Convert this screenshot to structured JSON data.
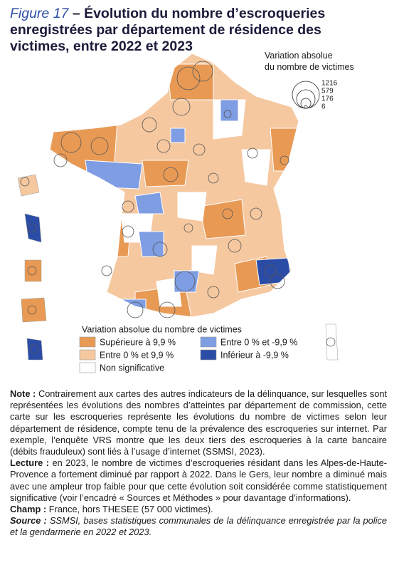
{
  "figure": {
    "label": "Figure 17",
    "title": "– Évolution du nombre d’escroqueries enregistrées par département de résidence des victimes, entre 2022 et 2023"
  },
  "bubble_legend": {
    "title": "Variation absolue du nombre de victimes",
    "values": [
      1216,
      579,
      176,
      6
    ]
  },
  "legend": {
    "title": "Variation absolue du nombre de victimes",
    "items": [
      {
        "label": "Supérieure à 9,9 %",
        "color": "#e89a55"
      },
      {
        "label": "Entre 0 % et 9,9 %",
        "color": "#f5c8a0"
      },
      {
        "label": "Non significative",
        "color": "#ffffff"
      },
      {
        "label": "Entre 0 % et -9,9 %",
        "color": "#7f9de3"
      },
      {
        "label": "Inférieur à -9,9 %",
        "color": "#2b4ca6"
      }
    ]
  },
  "notes": [
    {
      "label": "Note :",
      "text": "Contrairement aux cartes des autres indicateurs de la délinquance, sur lesquelles sont représentées les évolutions des nombres d’atteintes par département de commission, cette carte sur les escroqueries représente les évolutions du nombre de victimes selon leur département de résidence, compte tenu de la prévalence des escroqueries sur internet. Par exemple, l’enquête VRS montre que les deux tiers des escroqueries à la carte bancaire (débits frauduleux) sont liés à l’usage d’internet (SSMSI, 2023)."
    },
    {
      "label": "Lecture :",
      "text": "en 2023, le nombre de victimes d’escroqueries résidant dans les Alpes-de-Haute-Provence a fortement diminué par rapport à 2022. Dans le Gers, leur nombre a diminué mais avec une ampleur trop faible pour que cette évolution soit considérée comme statistiquement significative (voir l’encadré « Sources et Méthodes » pour davantage d’informations)."
    },
    {
      "label": "Champ :",
      "text": "France, hors THESEE (57 000 victimes)."
    },
    {
      "label": "Source :",
      "text": "SSMSI, bases statistiques communales de la délinquance enregistrée par la police et la gendarmerie en 2022 et 2023."
    }
  ]
}
